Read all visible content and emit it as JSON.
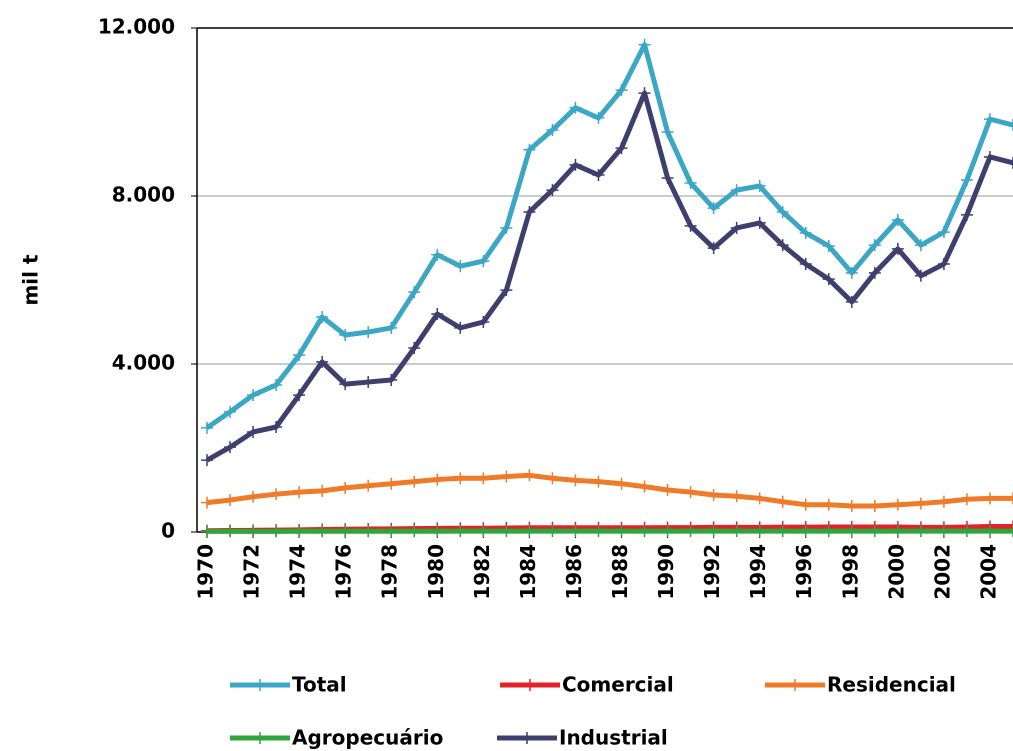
{
  "chart_data": {
    "type": "line",
    "y_label": "mil t",
    "x": [
      1970,
      1971,
      1972,
      1973,
      1974,
      1975,
      1976,
      1977,
      1978,
      1979,
      1980,
      1981,
      1982,
      1983,
      1984,
      1985,
      1986,
      1987,
      1988,
      1989,
      1990,
      1991,
      1992,
      1993,
      1994,
      1995,
      1996,
      1997,
      1998,
      1999,
      2000,
      2001,
      2002,
      2003,
      2004,
      2005
    ],
    "xlim": [
      1970,
      2005
    ],
    "xticks": [
      1970,
      1972,
      1974,
      1976,
      1978,
      1980,
      1982,
      1984,
      1986,
      1988,
      1990,
      1992,
      1994,
      1996,
      1998,
      2000,
      2002,
      2004
    ],
    "ylim": [
      0,
      12000
    ],
    "yticks": [
      {
        "value": 0,
        "label": "0"
      },
      {
        "value": 4000,
        "label": "4.000"
      },
      {
        "value": 8000,
        "label": "8.000"
      },
      {
        "value": 12000,
        "label": "12.000"
      }
    ],
    "grid": true,
    "series": [
      {
        "name": "Total",
        "color": "#3ba7c5",
        "values": [
          2480,
          2860,
          3260,
          3500,
          4210,
          5120,
          4690,
          4760,
          4860,
          5710,
          6600,
          6330,
          6450,
          7240,
          9100,
          9570,
          10100,
          9860,
          10520,
          11600,
          9520,
          8310,
          7710,
          8140,
          8240,
          7620,
          7120,
          6810,
          6170,
          6830,
          7430,
          6830,
          7140,
          8380,
          9830,
          9690
        ]
      },
      {
        "name": "Comercial",
        "color": "#e2222b",
        "values": [
          30,
          35,
          40,
          45,
          50,
          60,
          65,
          70,
          75,
          80,
          85,
          90,
          90,
          95,
          100,
          100,
          100,
          100,
          100,
          100,
          105,
          105,
          110,
          110,
          110,
          115,
          115,
          120,
          120,
          120,
          120,
          110,
          110,
          120,
          130,
          130
        ]
      },
      {
        "name": "Residencial",
        "color": "#ef7a28",
        "values": [
          700,
          760,
          840,
          900,
          950,
          980,
          1050,
          1100,
          1150,
          1200,
          1250,
          1280,
          1280,
          1320,
          1350,
          1280,
          1230,
          1200,
          1150,
          1080,
          1000,
          950,
          880,
          850,
          800,
          720,
          650,
          650,
          620,
          620,
          650,
          680,
          720,
          780,
          800,
          800
        ]
      },
      {
        "name": "Agropecuário",
        "color": "#2fa53b",
        "values": [
          15,
          15,
          16,
          16,
          17,
          17,
          18,
          18,
          18,
          19,
          19,
          20,
          20,
          20,
          20,
          20,
          20,
          20,
          20,
          20,
          20,
          20,
          20,
          20,
          20,
          20,
          20,
          20,
          20,
          20,
          20,
          20,
          20,
          20,
          20,
          20
        ]
      },
      {
        "name": "Industrial",
        "color": "#3f3f6f",
        "values": [
          1710,
          2020,
          2380,
          2500,
          3260,
          4050,
          3520,
          3570,
          3620,
          4380,
          5190,
          4860,
          5000,
          5760,
          7620,
          8140,
          8740,
          8500,
          9140,
          10450,
          8430,
          7290,
          6760,
          7240,
          7360,
          6830,
          6380,
          6020,
          5480,
          6170,
          6740,
          6100,
          6380,
          7550,
          8930,
          8790
        ]
      }
    ]
  }
}
